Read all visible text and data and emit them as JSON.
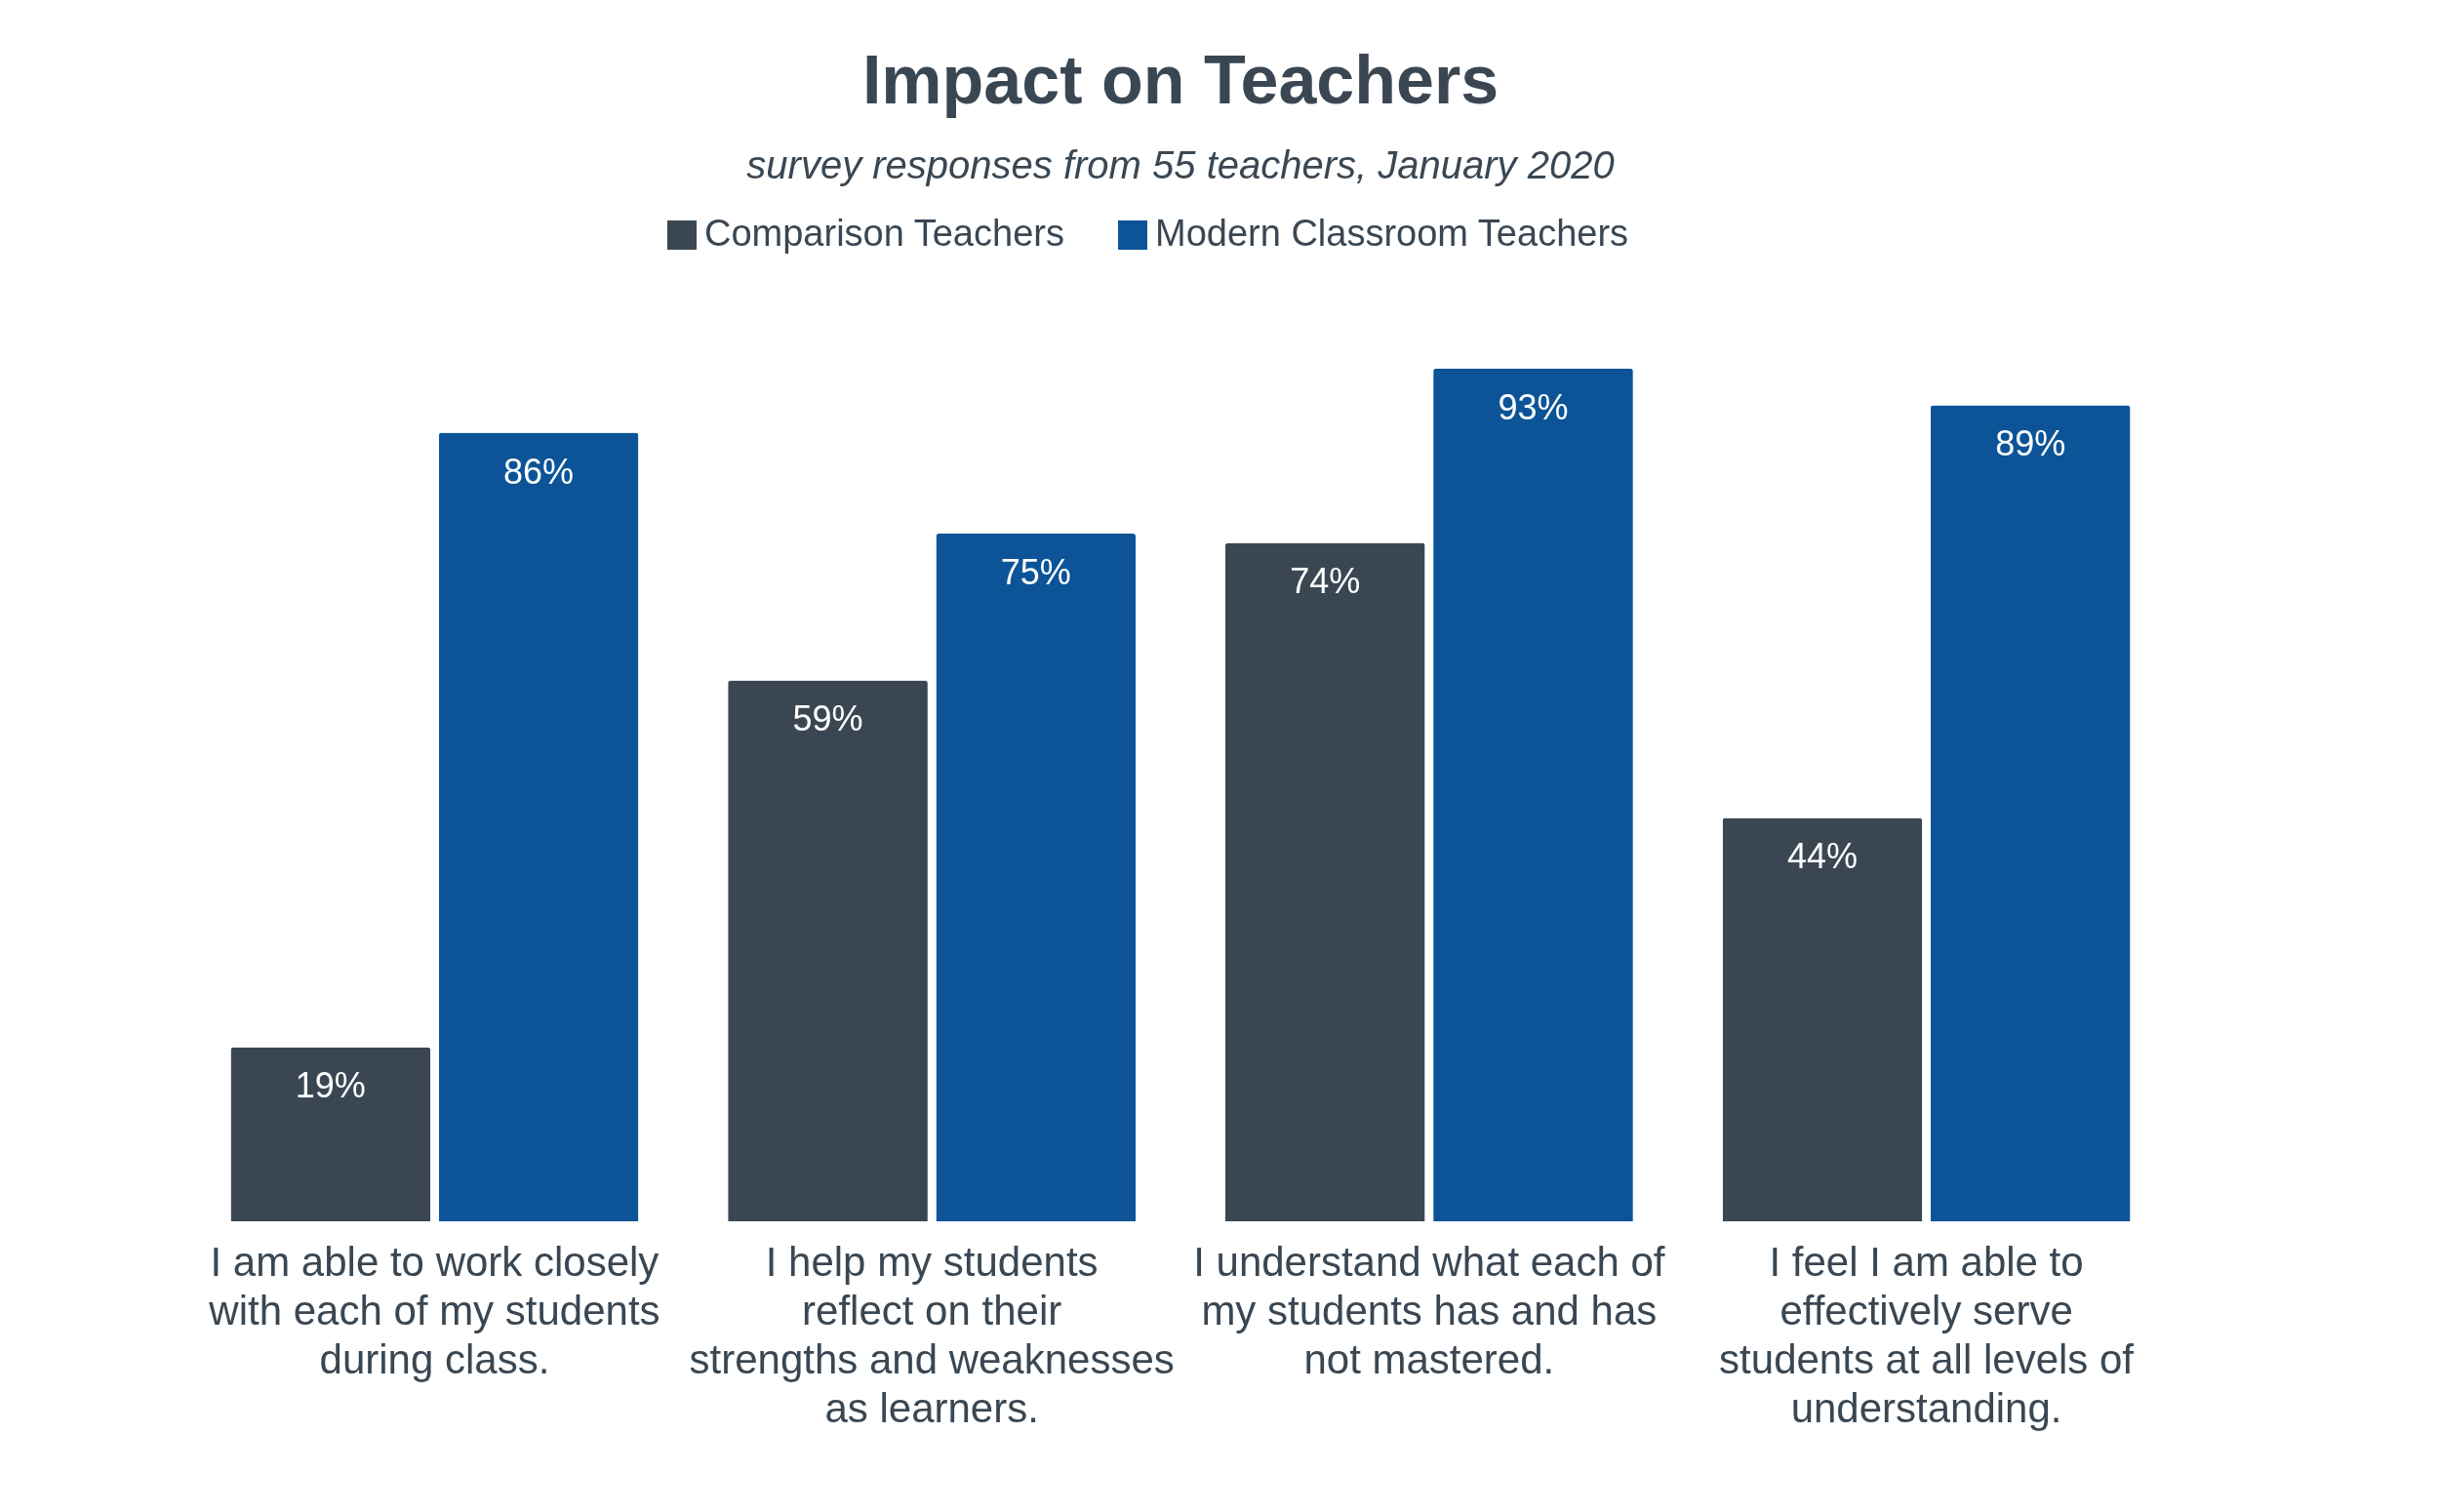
{
  "chart_data": {
    "type": "bar",
    "title": "Impact on Teachers",
    "subtitle": "survey responses from 55 teachers, January 2020",
    "categories": [
      "I am able to work closely with each of my students during class.",
      "I help my students reflect on their strengths and weaknesses as learners.",
      "I understand what each of my students has and has not mastered.",
      "I feel I am able to effectively serve students at all levels of understanding."
    ],
    "series": [
      {
        "name": "Comparison Teachers",
        "color": "#3a4753",
        "values": [
          19,
          59,
          74,
          44
        ],
        "value_labels": [
          "19%",
          "59%",
          "74%",
          "44%"
        ]
      },
      {
        "name": "Modern Classroom Teachers",
        "color": "#0c5497",
        "values": [
          86,
          75,
          93,
          89
        ],
        "value_labels": [
          "86%",
          "75%",
          "93%",
          "89%"
        ]
      }
    ],
    "legend": "top",
    "grid": false
  }
}
